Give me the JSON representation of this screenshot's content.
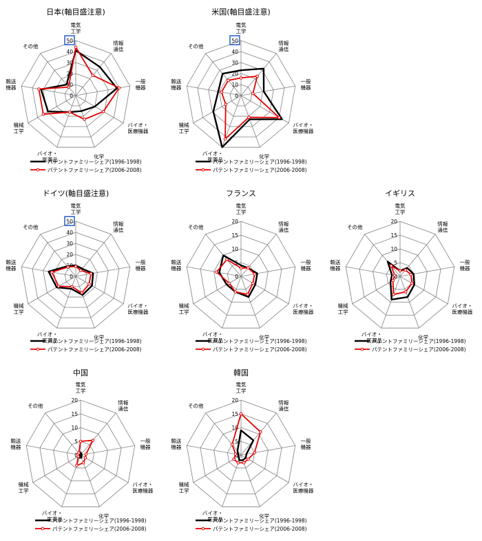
{
  "colors": {
    "background": "#ffffff",
    "grid": "#808080",
    "series_1996": "#000000",
    "series_2006": "#e60000",
    "highlight_box": "#3366cc"
  },
  "legend": {
    "series_1996": "パテントファミリーシェア(1996-1998)",
    "series_2006": "パテントファミリーシェア(2006-2008)"
  },
  "chart_data": [
    {
      "type": "radar",
      "title": "日本(軸目盛注意)",
      "categories": [
        [
          "電気",
          "工学"
        ],
        [
          "情報",
          "通信"
        ],
        [
          "一般",
          "機器"
        ],
        [
          "バイオ・",
          "医療機器"
        ],
        [
          "化学"
        ],
        [
          "バイオ・",
          "医薬品"
        ],
        [
          "機械",
          "工学"
        ],
        [
          "輸送",
          "機器"
        ],
        [
          "その他"
        ]
      ],
      "ticks": [
        "0",
        "10",
        "20",
        "30",
        "40",
        "50"
      ],
      "rmax": 50,
      "highlight_max_tick": true,
      "series": [
        {
          "name": "パテントファミリーシェア(1996-1998)",
          "values": [
            41,
            34,
            38,
            20,
            15,
            16,
            29,
            32,
            13
          ]
        },
        {
          "name": "パテントファミリーシェア(2006-2008)",
          "values": [
            44,
            24,
            40,
            29,
            23,
            16,
            34,
            34,
            10
          ]
        }
      ]
    },
    {
      "type": "radar",
      "title": "米国(軸目盛注意)",
      "categories": [
        [
          "電気",
          "工学"
        ],
        [
          "情報",
          "通信"
        ],
        [
          "一般",
          "機器"
        ],
        [
          "バイオ・",
          "医療機器"
        ],
        [
          "化学"
        ],
        [
          "バイオ・",
          "医薬品"
        ],
        [
          "機械",
          "工学"
        ],
        [
          "輸送",
          "機器"
        ],
        [
          "その他"
        ]
      ],
      "ticks": [
        "0",
        "10",
        "20",
        "30",
        "40",
        "50"
      ],
      "rmax": 50,
      "highlight_max_tick": true,
      "series": [
        {
          "name": "パテントファミリーシェア(1996-1998)",
          "values": [
            23,
            32,
            21,
            43,
            23,
            52,
            29,
            21,
            26
          ]
        },
        {
          "name": "パテントファミリーシェア(2006-2008)",
          "values": [
            16,
            23,
            11,
            40,
            21,
            42,
            16,
            18,
            18
          ]
        }
      ]
    },
    {
      "type": "radar",
      "title": "ドイツ(軸目盛注意)",
      "categories": [
        [
          "電気",
          "工学"
        ],
        [
          "情報",
          "通信"
        ],
        [
          "一般",
          "機器"
        ],
        [
          "バイオ・",
          "医療機器"
        ],
        [
          "化学"
        ],
        [
          "バイオ・",
          "医薬品"
        ],
        [
          "機械",
          "工学"
        ],
        [
          "輸送",
          "機器"
        ],
        [
          "その他"
        ]
      ],
      "ticks": [
        "0",
        "10",
        "20",
        "30",
        "40",
        "50"
      ],
      "rmax": 50,
      "highlight_max_tick": true,
      "series": [
        {
          "name": "パテントファミリーシェア(1996-1998)",
          "values": [
            10,
            9,
            16,
            17,
            18,
            12,
            20,
            25,
            12
          ]
        },
        {
          "name": "パテントファミリーシェア(2006-2008)",
          "values": [
            9,
            7,
            14,
            14,
            16,
            10,
            18,
            22,
            11
          ]
        }
      ]
    },
    {
      "type": "radar",
      "title": "フランス",
      "categories": [
        [
          "電気",
          "工学"
        ],
        [
          "情報",
          "通信"
        ],
        [
          "一般",
          "機器"
        ],
        [
          "バイオ・",
          "医療機器"
        ],
        [
          "化学"
        ],
        [
          "バイオ・",
          "医薬品"
        ],
        [
          "機械",
          "工学"
        ],
        [
          "輸送",
          "機器"
        ],
        [
          "その他"
        ]
      ],
      "ticks": [
        "0",
        "5",
        "10",
        "15",
        "20"
      ],
      "rmax": 20,
      "highlight_max_tick": false,
      "series": [
        {
          "name": "パテントファミリーシェア(1996-1998)",
          "values": [
            4,
            4,
            6,
            6,
            8,
            6,
            6,
            8,
            10
          ]
        },
        {
          "name": "パテントファミリーシェア(2006-2008)",
          "values": [
            3,
            4,
            5,
            5,
            7,
            6,
            5,
            9,
            8
          ]
        }
      ]
    },
    {
      "type": "radar",
      "title": "イギリス",
      "categories": [
        [
          "電気",
          "工学"
        ],
        [
          "情報",
          "通信"
        ],
        [
          "一般",
          "機器"
        ],
        [
          "バイオ・",
          "医療機器"
        ],
        [
          "化学"
        ],
        [
          "バイオ・",
          "医薬品"
        ],
        [
          "機械",
          "工学"
        ],
        [
          "輸送",
          "機器"
        ],
        [
          "その他"
        ]
      ],
      "ticks": [
        "0",
        "5",
        "10",
        "15",
        "20"
      ],
      "rmax": 20,
      "highlight_max_tick": false,
      "series": [
        {
          "name": "パテントファミリーシェア(1996-1998)",
          "values": [
            2,
            4,
            5,
            6,
            8,
            9,
            4,
            3,
            7
          ]
        },
        {
          "name": "パテントファミリーシェア(2006-2008)",
          "values": [
            2,
            3,
            4,
            5,
            6,
            7,
            3,
            2,
            5
          ]
        }
      ]
    },
    {
      "type": "radar",
      "title": "中国",
      "categories": [
        [
          "電気",
          "工学"
        ],
        [
          "情報",
          "通信"
        ],
        [
          "一般",
          "機器"
        ],
        [
          "バイオ・",
          "医療機器"
        ],
        [
          "化学"
        ],
        [
          "バイオ・",
          "医薬品"
        ],
        [
          "機械",
          "工学"
        ],
        [
          "輸送",
          "機器"
        ],
        [
          "その他"
        ]
      ],
      "ticks": [
        "0",
        "5",
        "10",
        "15",
        "20"
      ],
      "rmax": 20,
      "highlight_max_tick": false,
      "series": [
        {
          "name": "パテントファミリーシェア(1996-1998)",
          "values": [
            1,
            0.5,
            0.5,
            0.3,
            1,
            1,
            0.5,
            0.3,
            0.5
          ]
        },
        {
          "name": "パテントファミリーシェア(2006-2008)",
          "values": [
            5,
            7,
            2,
            2,
            3,
            4,
            1,
            1,
            1
          ]
        }
      ]
    },
    {
      "type": "radar",
      "title": "韓国",
      "categories": [
        [
          "電気",
          "工学"
        ],
        [
          "情報",
          "通信"
        ],
        [
          "一般",
          "機器"
        ],
        [
          "バイオ・",
          "医療機器"
        ],
        [
          "化学"
        ],
        [
          "バイオ・",
          "医薬品"
        ],
        [
          "機械",
          "工学"
        ],
        [
          "輸送",
          "機器"
        ],
        [
          "その他"
        ]
      ],
      "ticks": [
        "0",
        "5",
        "10",
        "15",
        "20"
      ],
      "rmax": 20,
      "highlight_max_tick": false,
      "series": [
        {
          "name": "パテントファミリーシェア(1996-1998)",
          "values": [
            9,
            7,
            2,
            2,
            2,
            2,
            1,
            1,
            2
          ]
        },
        {
          "name": "パテントファミリーシェア(2006-2008)",
          "values": [
            15,
            11,
            5,
            3,
            3,
            3,
            3,
            2,
            5
          ]
        }
      ]
    }
  ]
}
